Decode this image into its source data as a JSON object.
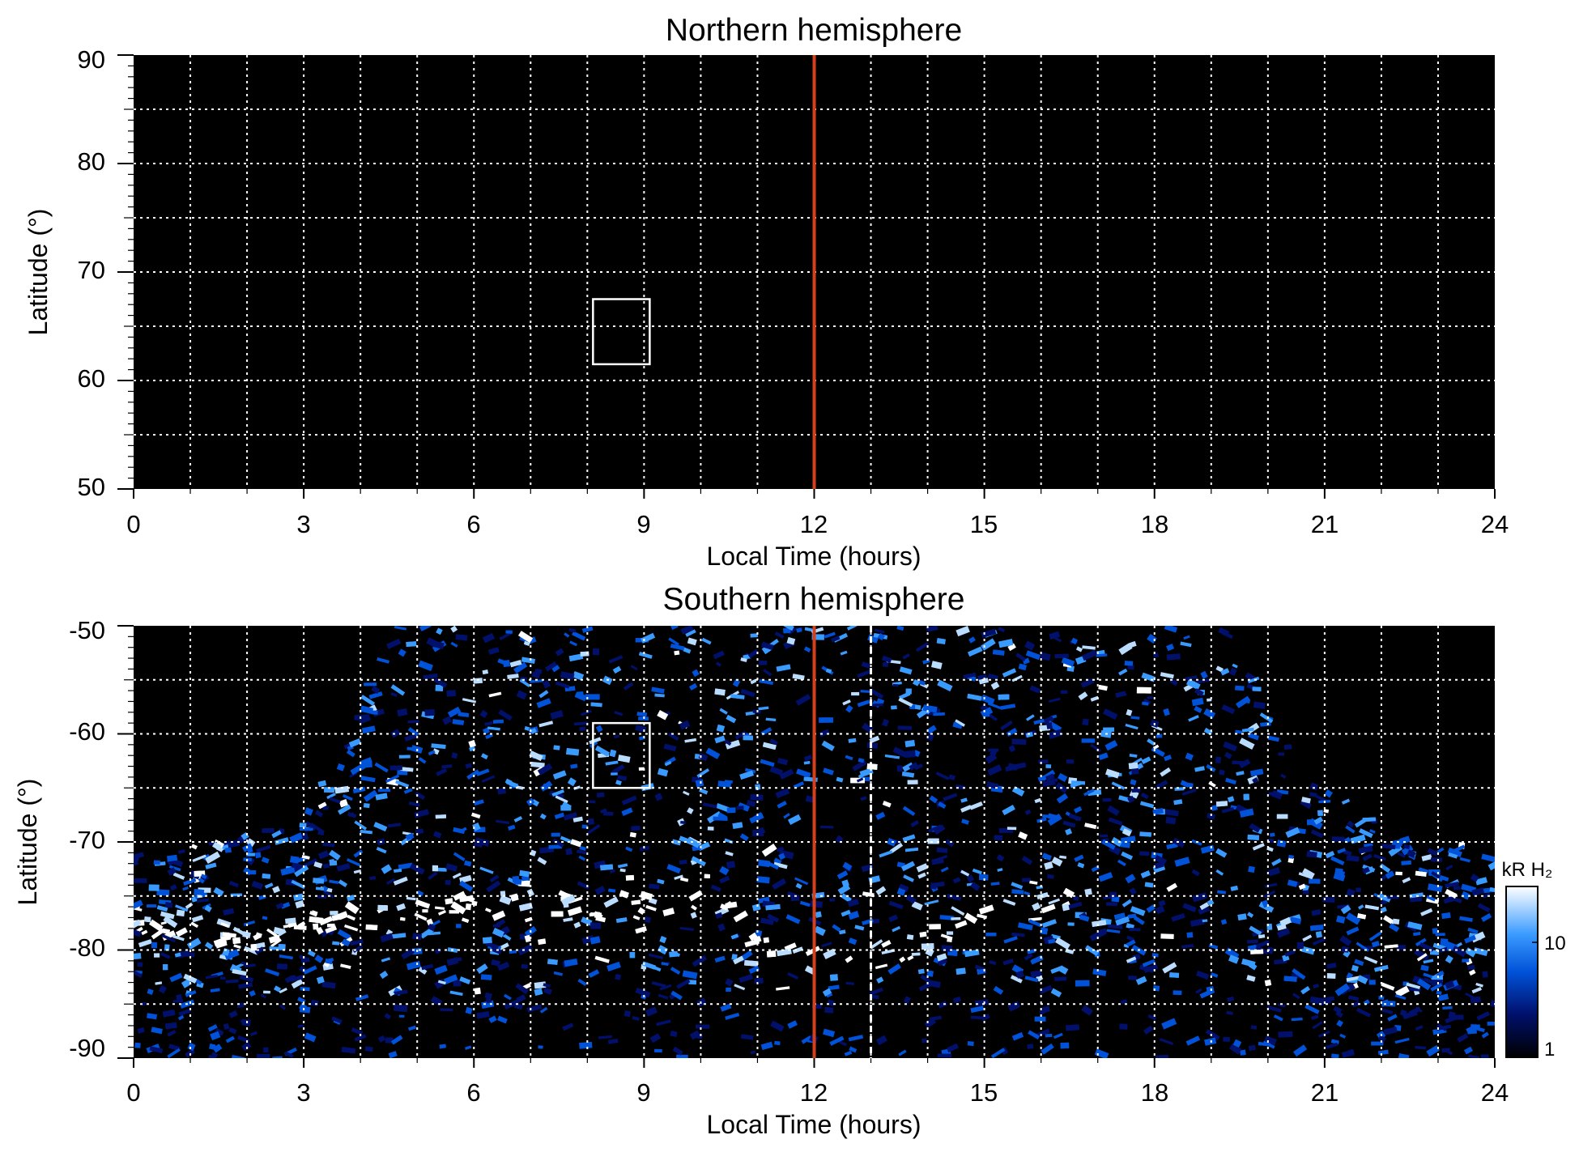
{
  "chart_data": [
    {
      "type": "heatmap",
      "title": "Northern hemisphere",
      "xlabel": "Local Time (hours)",
      "ylabel": "Latitude (°)",
      "xlim": [
        0,
        24
      ],
      "ylim": [
        50,
        90
      ],
      "x_ticks": [
        "0",
        "3",
        "6",
        "9",
        "12",
        "15",
        "18",
        "21",
        "24"
      ],
      "y_ticks": [
        "50",
        "60",
        "70",
        "80",
        "90"
      ],
      "grid": true,
      "noon_line": {
        "x": 12,
        "color": "#d4401c"
      },
      "box": {
        "x": [
          8.1,
          9.1
        ],
        "y": [
          61.5,
          67.5
        ]
      },
      "emission": "none"
    },
    {
      "type": "heatmap",
      "title": "Southern hemisphere",
      "xlabel": "Local Time (hours)",
      "ylabel": "Latitude (°)",
      "xlim": [
        0,
        24
      ],
      "ylim": [
        -90,
        -50
      ],
      "x_ticks": [
        "0",
        "3",
        "6",
        "9",
        "12",
        "15",
        "18",
        "21",
        "24"
      ],
      "y_ticks": [
        "-90",
        "-80",
        "-70",
        "-60",
        "-50"
      ],
      "grid": true,
      "noon_line": {
        "x": 12,
        "color": "#d4401c"
      },
      "dashed_line": {
        "x": 13,
        "color": "#ffffff"
      },
      "box": {
        "x": [
          8.1,
          9.1
        ],
        "y": [
          -65,
          -59
        ]
      },
      "coverage_edge": [
        [
          0,
          -71
        ],
        [
          1,
          -70.5
        ],
        [
          2,
          -69
        ],
        [
          3,
          -66
        ],
        [
          3.5,
          -63
        ],
        [
          4,
          -58
        ],
        [
          4.3,
          -53
        ],
        [
          4.5,
          -50
        ],
        [
          19.2,
          -50
        ],
        [
          19.6,
          -53
        ],
        [
          20,
          -58
        ],
        [
          20.6,
          -63
        ],
        [
          21.3,
          -66
        ],
        [
          22.3,
          -69
        ],
        [
          24,
          -71
        ]
      ],
      "auroral_arc": [
        [
          0,
          -77
        ],
        [
          2,
          -79
        ],
        [
          3.5,
          -77
        ],
        [
          6,
          -76
        ],
        [
          8,
          -76
        ],
        [
          10.5,
          -75.5
        ],
        [
          11,
          -80
        ],
        [
          12,
          -81
        ],
        [
          13,
          -81
        ],
        [
          14,
          -79
        ],
        [
          15,
          -77
        ],
        [
          16.5,
          -75.5
        ]
      ],
      "colorbar": {
        "label": "kR H₂",
        "scale": "log",
        "range": [
          1,
          30
        ],
        "ticks": [
          "10",
          "1"
        ],
        "colors": [
          "#000000",
          "#00106b",
          "#0052d8",
          "#3a9bff",
          "#b9dcff",
          "#ffffff"
        ]
      }
    }
  ]
}
